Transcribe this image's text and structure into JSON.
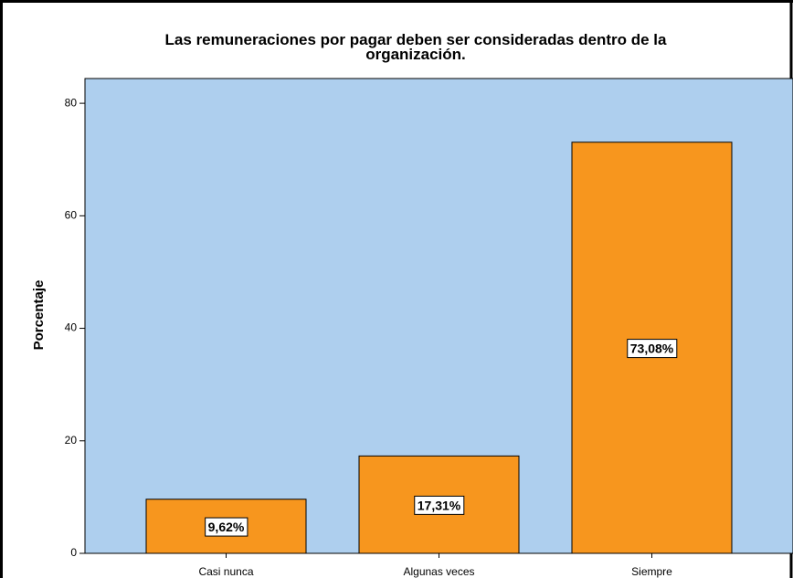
{
  "chart_data": {
    "type": "bar",
    "title": "Las remuneraciones por pagar deben ser consideradas dentro de la organización.",
    "y_label": "Porcentaje",
    "categories": [
      "Casi nunca",
      "Algunas veces",
      "Siempre"
    ],
    "values": [
      9.62,
      17.31,
      73.08
    ],
    "value_labels": [
      "9,62%",
      "17,31%",
      "73,08%"
    ],
    "color": "#f7961e",
    "background": "#aecfee",
    "ylim": [
      0,
      84.4
    ],
    "yticks": [
      0,
      20,
      40,
      60,
      80
    ]
  }
}
